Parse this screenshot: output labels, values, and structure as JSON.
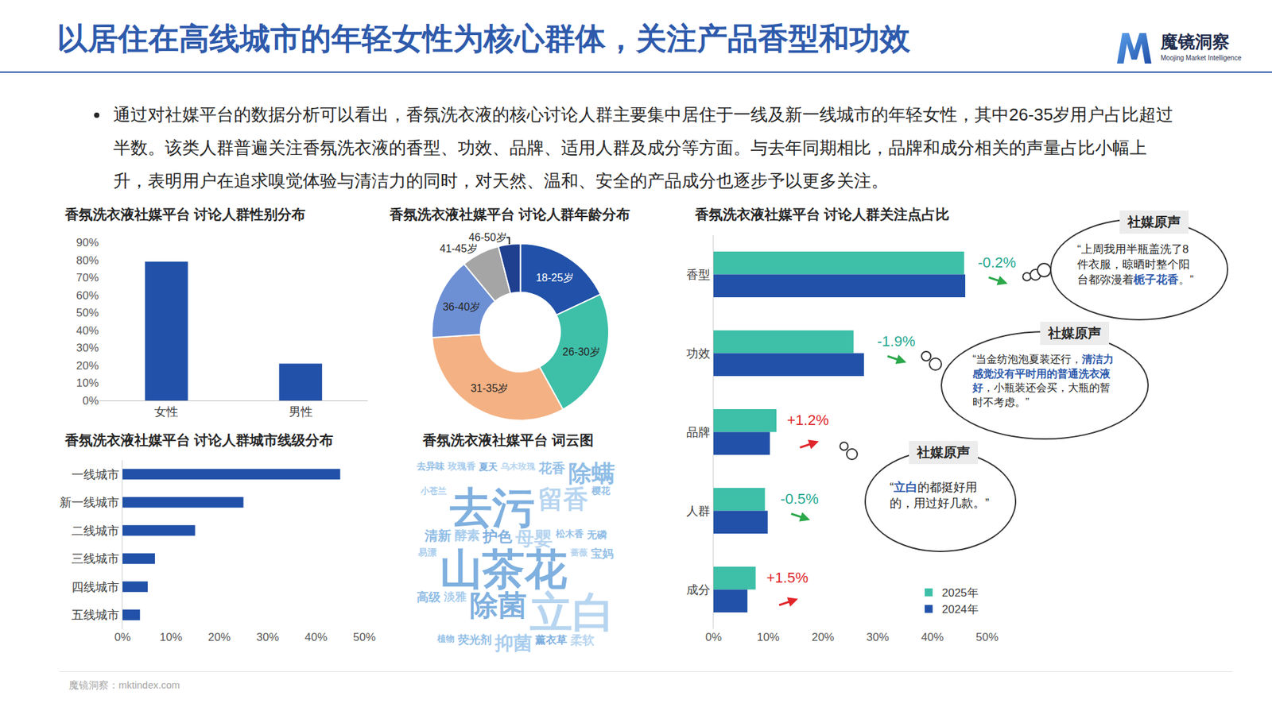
{
  "header": {
    "title": "以居住在高线城市的年轻女性为核心群体，关注产品香型和功效",
    "logo_name": "魔镜洞察",
    "logo_sub": "Moojing Market Intelligence"
  },
  "summary": "通过对社媒平台的数据分析可以看出，香氛洗衣液的核心讨论人群主要集中居住于一线及新一线城市的年轻女性，其中26-35岁用户占比超过半数。该类人群普遍关注香氛洗衣液的香型、功效、品牌、适用人群及成分等方面。与去年同期相比，品牌和成分相关的声量占比小幅上升，表明用户在追求嗅觉体验与清洁力的同时，对天然、温和、安全的产品成分也逐步予以更多关注。",
  "chart_data": [
    {
      "type": "bar",
      "title": "香氛洗衣液社媒平台 讨论人群性别分布",
      "categories": [
        "女性",
        "男性"
      ],
      "values": [
        79,
        21
      ],
      "color": "#2151a8",
      "ylim": [
        0,
        90
      ],
      "yticks": [
        {
          "value": 0,
          "label": "0%"
        },
        {
          "value": 10,
          "label": "10%"
        },
        {
          "value": 20,
          "label": "20%"
        },
        {
          "value": 30,
          "label": "30%"
        },
        {
          "value": 40,
          "label": "40%"
        },
        {
          "value": 50,
          "label": "50%"
        },
        {
          "value": 60,
          "label": "60%"
        },
        {
          "value": 70,
          "label": "70%"
        },
        {
          "value": 80,
          "label": "80%"
        },
        {
          "value": 90,
          "label": "90%"
        }
      ],
      "grid": false
    },
    {
      "type": "donut",
      "title": "香氛洗衣液社媒平台 讨论人群年龄分布",
      "categories": [
        "18-25岁",
        "26-30岁",
        "31-35岁",
        "36-40岁",
        "41-45岁",
        "46-50岁"
      ],
      "values": [
        18,
        24,
        32,
        15,
        7,
        4
      ],
      "colors": [
        "#2151a8",
        "#3dbfa8",
        "#f4b183",
        "#6d8fd4",
        "#a5a5a5",
        "#1f3f8f"
      ]
    },
    {
      "type": "bar",
      "orientation": "horizontal",
      "title": "香氛洗衣液社媒平台 讨论人群城市线级分布",
      "categories": [
        "一线城市",
        "新一线城市",
        "二线城市",
        "三线城市",
        "四线城市",
        "五线城市"
      ],
      "values": [
        45,
        25,
        15,
        6.7,
        5.2,
        3.6
      ],
      "color": "#2151a8",
      "xlim": [
        0,
        50
      ],
      "xticks": [
        {
          "value": 0,
          "label": "0%"
        },
        {
          "value": 10,
          "label": "10%"
        },
        {
          "value": 20,
          "label": "20%"
        },
        {
          "value": 30,
          "label": "30%"
        },
        {
          "value": 40,
          "label": "40%"
        },
        {
          "value": 50,
          "label": "50%"
        }
      ],
      "grid": false
    },
    {
      "type": "wordcloud",
      "title": "香氛洗衣液社媒平台 词云图",
      "words": [
        {
          "text": "去异味",
          "weight": 0.3
        },
        {
          "text": "玫瑰香",
          "weight": 0.3
        },
        {
          "text": "夏天",
          "weight": 0.4
        },
        {
          "text": "乌木玫瑰",
          "weight": 0.2
        },
        {
          "text": "花香",
          "weight": 1.5
        },
        {
          "text": "除螨",
          "weight": 4.5
        },
        {
          "text": "小苍兰",
          "weight": 0.2
        },
        {
          "text": "去污",
          "weight": 10
        },
        {
          "text": "留香",
          "weight": 5
        },
        {
          "text": "樱花",
          "weight": 0.3
        },
        {
          "text": "清新",
          "weight": 1.5
        },
        {
          "text": "酵素",
          "weight": 1.3
        },
        {
          "text": "护色",
          "weight": 2
        },
        {
          "text": "母婴",
          "weight": 3
        },
        {
          "text": "松木香",
          "weight": 0.3
        },
        {
          "text": "无磷",
          "weight": 0.6
        },
        {
          "text": "易漂",
          "weight": 0.3
        },
        {
          "text": "山茶花",
          "weight": 10
        },
        {
          "text": "蔷薇",
          "weight": 0.2
        },
        {
          "text": "宝妈",
          "weight": 1
        },
        {
          "text": "高级",
          "weight": 1.2
        },
        {
          "text": "淡雅",
          "weight": 1
        },
        {
          "text": "除菌",
          "weight": 6
        },
        {
          "text": "立白",
          "weight": 10
        },
        {
          "text": "植物",
          "weight": 0.2
        },
        {
          "text": "荧光剂",
          "weight": 1
        },
        {
          "text": "抑菌",
          "weight": 3
        },
        {
          "text": "薰衣草",
          "weight": 0.8
        },
        {
          "text": "柔软",
          "weight": 1.2
        }
      ]
    },
    {
      "type": "bar",
      "orientation": "horizontal",
      "title": "香氛洗衣液社媒平台 讨论人群关注点占比",
      "categories": [
        "香型",
        "功效",
        "品牌",
        "人群",
        "成分"
      ],
      "series": [
        {
          "name": "2025年",
          "color": "#3dbfa8",
          "values": [
            45.8,
            25.6,
            11.5,
            9.4,
            7.7
          ]
        },
        {
          "name": "2024年",
          "color": "#2151a8",
          "values": [
            46,
            27.5,
            10.3,
            9.9,
            6.2
          ]
        }
      ],
      "xlim": [
        0,
        50
      ],
      "xticks": [
        {
          "value": 0,
          "label": "0%"
        },
        {
          "value": 10,
          "label": "10%"
        },
        {
          "value": 20,
          "label": "20%"
        },
        {
          "value": 30,
          "label": "30%"
        },
        {
          "value": 40,
          "label": "40%"
        },
        {
          "value": 50,
          "label": "50%"
        }
      ],
      "grid": false,
      "legend": "lower right",
      "changes": [
        -0.2,
        -1.9,
        1.2,
        -0.5,
        1.5
      ],
      "change_labels": [
        "-0.2%",
        "-1.9%",
        "+1.2%",
        "-0.5%",
        "+1.5%"
      ]
    }
  ],
  "quotes": [
    {
      "title": "社媒原声",
      "before": "“上周我用半瓶盖洗了8件衣服，晾晒时整个阳台都弥漫着",
      "highlight": "栀子花香",
      "after": "。”"
    },
    {
      "title": "社媒原声",
      "before": "“当金纺泡泡夏装还行，",
      "highlight": "清洁力感觉没有平时用的普通洗衣液好",
      "after": "，小瓶装还会买，大瓶的暂时不考虑。”"
    },
    {
      "title": "社媒原声",
      "before": "“",
      "highlight": "立白",
      "after": "的都挺好用的，用过好几款。”"
    }
  ],
  "footer": "魔镜洞察：mktindex.com"
}
